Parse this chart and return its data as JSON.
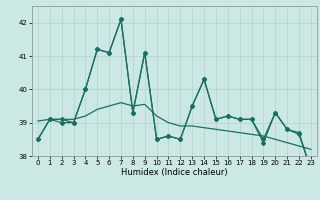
{
  "bg_color": "#cce8e4",
  "grid_color": "#b5d5d0",
  "line_color": "#1a6e63",
  "xlabel": "Humidex (Indice chaleur)",
  "hours": [
    0,
    1,
    2,
    3,
    4,
    5,
    6,
    7,
    8,
    9,
    10,
    11,
    12,
    13,
    14,
    15,
    16,
    17,
    18,
    19,
    20,
    21,
    22,
    23
  ],
  "s1": [
    38.5,
    39.1,
    39.1,
    39.0,
    40.0,
    41.2,
    41.1,
    42.1,
    39.3,
    41.1,
    38.5,
    38.6,
    38.5,
    39.5,
    40.3,
    39.1,
    39.2,
    39.1,
    39.1,
    38.4,
    39.3,
    38.8,
    38.7,
    37.6
  ],
  "s2": [
    38.5,
    39.1,
    39.0,
    39.0,
    40.0,
    41.2,
    41.1,
    42.1,
    39.3,
    41.1,
    38.5,
    38.6,
    38.5,
    39.5,
    40.3,
    39.1,
    39.2,
    39.1,
    39.1,
    38.5,
    39.3,
    38.8,
    38.65,
    37.6
  ],
  "s3": [
    39.05,
    39.1,
    39.1,
    39.1,
    39.2,
    39.4,
    39.5,
    39.6,
    39.5,
    39.55,
    39.2,
    39.0,
    38.9,
    38.9,
    38.85,
    38.8,
    38.75,
    38.7,
    38.65,
    38.6,
    38.5,
    38.4,
    38.3,
    38.2
  ],
  "ylim": [
    38.0,
    42.5
  ],
  "yticks": [
    38,
    39,
    40,
    41,
    42
  ],
  "xticks": [
    0,
    1,
    2,
    3,
    4,
    5,
    6,
    7,
    8,
    9,
    10,
    11,
    12,
    13,
    14,
    15,
    16,
    17,
    18,
    19,
    20,
    21,
    22,
    23
  ],
  "xlabel_fontsize": 6.0,
  "tick_fontsize": 5.0,
  "linewidth": 0.9,
  "markersize": 2.0
}
